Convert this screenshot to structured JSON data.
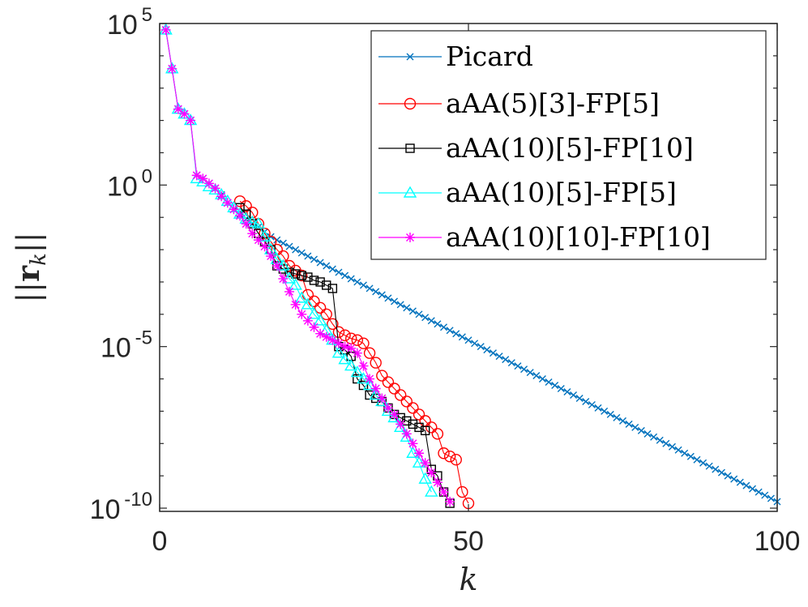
{
  "chart_data": {
    "type": "line",
    "title": "",
    "xlabel": "k",
    "ylabel": "||r_k||",
    "xlim": [
      0,
      100
    ],
    "ylim_log10": [
      -10.1,
      5
    ],
    "yscale": "log",
    "grid": false,
    "legend_position": "top-right",
    "xticks": [
      {
        "value": 0,
        "label": "0"
      },
      {
        "value": 50,
        "label": "50"
      },
      {
        "value": 100,
        "label": "100"
      }
    ],
    "yticks": [
      {
        "value": 5,
        "base": "10",
        "exp": "5"
      },
      {
        "value": 0,
        "base": "10",
        "exp": "0"
      },
      {
        "value": -5,
        "base": "10",
        "exp": "-5"
      },
      {
        "value": -10,
        "base": "10",
        "exp": "-10"
      }
    ],
    "series": [
      {
        "name": "Picard",
        "color": "#0072bd",
        "marker": "x",
        "x": [
          1,
          2,
          3,
          4,
          5,
          6,
          7,
          8,
          9,
          10,
          11,
          12,
          13,
          14,
          15,
          16,
          17,
          18,
          19,
          20,
          21,
          22,
          23,
          24,
          25,
          26,
          27,
          28,
          29,
          30,
          31,
          32,
          33,
          34,
          35,
          36,
          37,
          38,
          39,
          40,
          41,
          42,
          43,
          44,
          45,
          46,
          47,
          48,
          49,
          50,
          51,
          52,
          53,
          54,
          55,
          56,
          57,
          58,
          59,
          60,
          61,
          62,
          63,
          64,
          65,
          66,
          67,
          68,
          69,
          70,
          71,
          72,
          73,
          74,
          75,
          76,
          77,
          78,
          79,
          80,
          81,
          82,
          83,
          84,
          85,
          86,
          87,
          88,
          89,
          90,
          91,
          92,
          93,
          94,
          95,
          96,
          97,
          98,
          99,
          100
        ],
        "log10y": [
          4.8,
          3.6,
          2.35,
          2.2,
          2.0,
          0.3,
          0.2,
          0.05,
          -0.1,
          -0.3,
          -0.55,
          -0.75,
          -0.9,
          -1.05,
          -1.2,
          -1.3,
          -1.45,
          -1.6,
          -1.7,
          -1.8,
          -1.9,
          -2.0,
          -2.1,
          -2.2,
          -2.3,
          -2.4,
          -2.5,
          -2.6,
          -2.7,
          -2.8,
          -2.9,
          -3.0,
          -3.1,
          -3.2,
          -3.3,
          -3.4,
          -3.5,
          -3.6,
          -3.7,
          -3.8,
          -3.9,
          -4.0,
          -4.1,
          -4.2,
          -4.3,
          -4.4,
          -4.5,
          -4.6,
          -4.7,
          -4.8,
          -4.9,
          -5.0,
          -5.1,
          -5.2,
          -5.3,
          -5.4,
          -5.5,
          -5.6,
          -5.7,
          -5.8,
          -5.9,
          -6.0,
          -6.1,
          -6.2,
          -6.3,
          -6.4,
          -6.5,
          -6.6,
          -6.7,
          -6.8,
          -6.9,
          -7.0,
          -7.1,
          -7.2,
          -7.3,
          -7.4,
          -7.5,
          -7.6,
          -7.7,
          -7.8,
          -7.9,
          -8.0,
          -8.1,
          -8.2,
          -8.3,
          -8.4,
          -8.5,
          -8.6,
          -8.7,
          -8.8,
          -8.9,
          -9.0,
          -9.1,
          -9.2,
          -9.3,
          -9.4,
          -9.5,
          -9.6,
          -9.7,
          -9.8
        ]
      },
      {
        "name": "aAA(5)[3]-FP[5]",
        "color": "#ff0000",
        "marker": "o",
        "x": [
          13,
          14,
          15,
          16,
          17,
          18,
          19,
          20,
          21,
          22,
          23,
          24,
          25,
          26,
          27,
          28,
          29,
          30,
          31,
          32,
          33,
          34,
          35,
          36,
          37,
          38,
          39,
          40,
          41,
          42,
          43,
          44,
          45,
          46,
          47,
          48,
          49,
          50
        ],
        "log10y": [
          -0.5,
          -0.65,
          -0.85,
          -1.2,
          -1.5,
          -1.75,
          -2.0,
          -2.2,
          -2.5,
          -2.65,
          -2.8,
          -3.4,
          -3.6,
          -3.8,
          -4.0,
          -4.3,
          -4.55,
          -4.65,
          -4.75,
          -4.8,
          -4.9,
          -5.2,
          -5.5,
          -5.9,
          -6.1,
          -6.3,
          -6.5,
          -6.7,
          -6.9,
          -7.1,
          -7.3,
          -7.5,
          -7.7,
          -8.3,
          -8.4,
          -8.5,
          -9.5,
          -9.85
        ]
      },
      {
        "name": "aAA(10)[5]-FP[10]",
        "color": "#000000",
        "marker": "s",
        "x": [
          13,
          14,
          15,
          16,
          17,
          18,
          19,
          20,
          21,
          22,
          23,
          24,
          25,
          26,
          27,
          28,
          29,
          30,
          31,
          32,
          33,
          34,
          35,
          36,
          37,
          38,
          39,
          40,
          41,
          42,
          43,
          44,
          45,
          46,
          47
        ],
        "log10y": [
          -0.7,
          -0.9,
          -1.2,
          -1.5,
          -1.75,
          -2.0,
          -2.5,
          -2.6,
          -2.7,
          -2.75,
          -2.8,
          -2.85,
          -2.95,
          -3.0,
          -3.1,
          -3.2,
          -5.0,
          -5.1,
          -5.3,
          -6.0,
          -6.2,
          -6.5,
          -6.6,
          -6.7,
          -6.9,
          -7.1,
          -7.2,
          -7.3,
          -7.4,
          -7.5,
          -7.6,
          -8.8,
          -9.0,
          -9.5,
          -9.85
        ]
      },
      {
        "name": "aAA(10)[5]-FP[5]",
        "color": "#00ffff",
        "marker": "^",
        "x": [
          1,
          2,
          3,
          4,
          5,
          6,
          7,
          8,
          9,
          10,
          11,
          12,
          13,
          14,
          15,
          16,
          17,
          18,
          19,
          20,
          21,
          22,
          23,
          24,
          25,
          26,
          27,
          28,
          29,
          30,
          31,
          32,
          33,
          34,
          35,
          36,
          37,
          38,
          39,
          40,
          41,
          42,
          43,
          44
        ],
        "log10y": [
          4.8,
          3.6,
          2.35,
          2.2,
          2.0,
          0.2,
          0.1,
          -0.05,
          -0.15,
          -0.3,
          -0.5,
          -0.7,
          -0.9,
          -1.05,
          -1.15,
          -1.2,
          -1.6,
          -2.0,
          -2.3,
          -2.5,
          -2.9,
          -3.1,
          -3.5,
          -3.7,
          -4.0,
          -4.2,
          -4.5,
          -4.8,
          -5.2,
          -5.4,
          -5.6,
          -5.8,
          -6.0,
          -6.2,
          -6.5,
          -6.7,
          -7.0,
          -7.2,
          -7.5,
          -7.8,
          -8.3,
          -8.6,
          -9.1,
          -9.5
        ]
      },
      {
        "name": "aAA(10)[10]-FP[10]",
        "color": "#ff00ff",
        "marker": "*",
        "x": [
          1,
          2,
          3,
          4,
          5,
          6,
          7,
          8,
          9,
          10,
          11,
          12,
          13,
          14,
          15,
          16,
          17,
          18,
          19,
          20,
          21,
          22,
          23,
          24,
          25,
          26,
          27,
          28,
          29,
          30,
          31,
          32,
          33,
          34,
          35,
          36,
          37,
          38,
          39,
          40,
          41,
          42,
          43,
          44,
          45,
          46,
          47
        ],
        "log10y": [
          4.8,
          3.6,
          2.35,
          2.2,
          2.0,
          0.3,
          0.2,
          0.05,
          -0.1,
          -0.35,
          -0.55,
          -0.75,
          -0.95,
          -1.2,
          -1.5,
          -1.7,
          -1.9,
          -2.2,
          -2.5,
          -2.9,
          -3.3,
          -3.7,
          -4.0,
          -4.2,
          -4.4,
          -4.6,
          -4.7,
          -4.8,
          -4.9,
          -5.0,
          -5.05,
          -5.2,
          -5.6,
          -6.0,
          -6.3,
          -6.6,
          -6.9,
          -7.1,
          -7.4,
          -7.7,
          -8.0,
          -8.3,
          -8.6,
          -8.9,
          -9.2,
          -9.5,
          -9.8
        ]
      }
    ]
  }
}
